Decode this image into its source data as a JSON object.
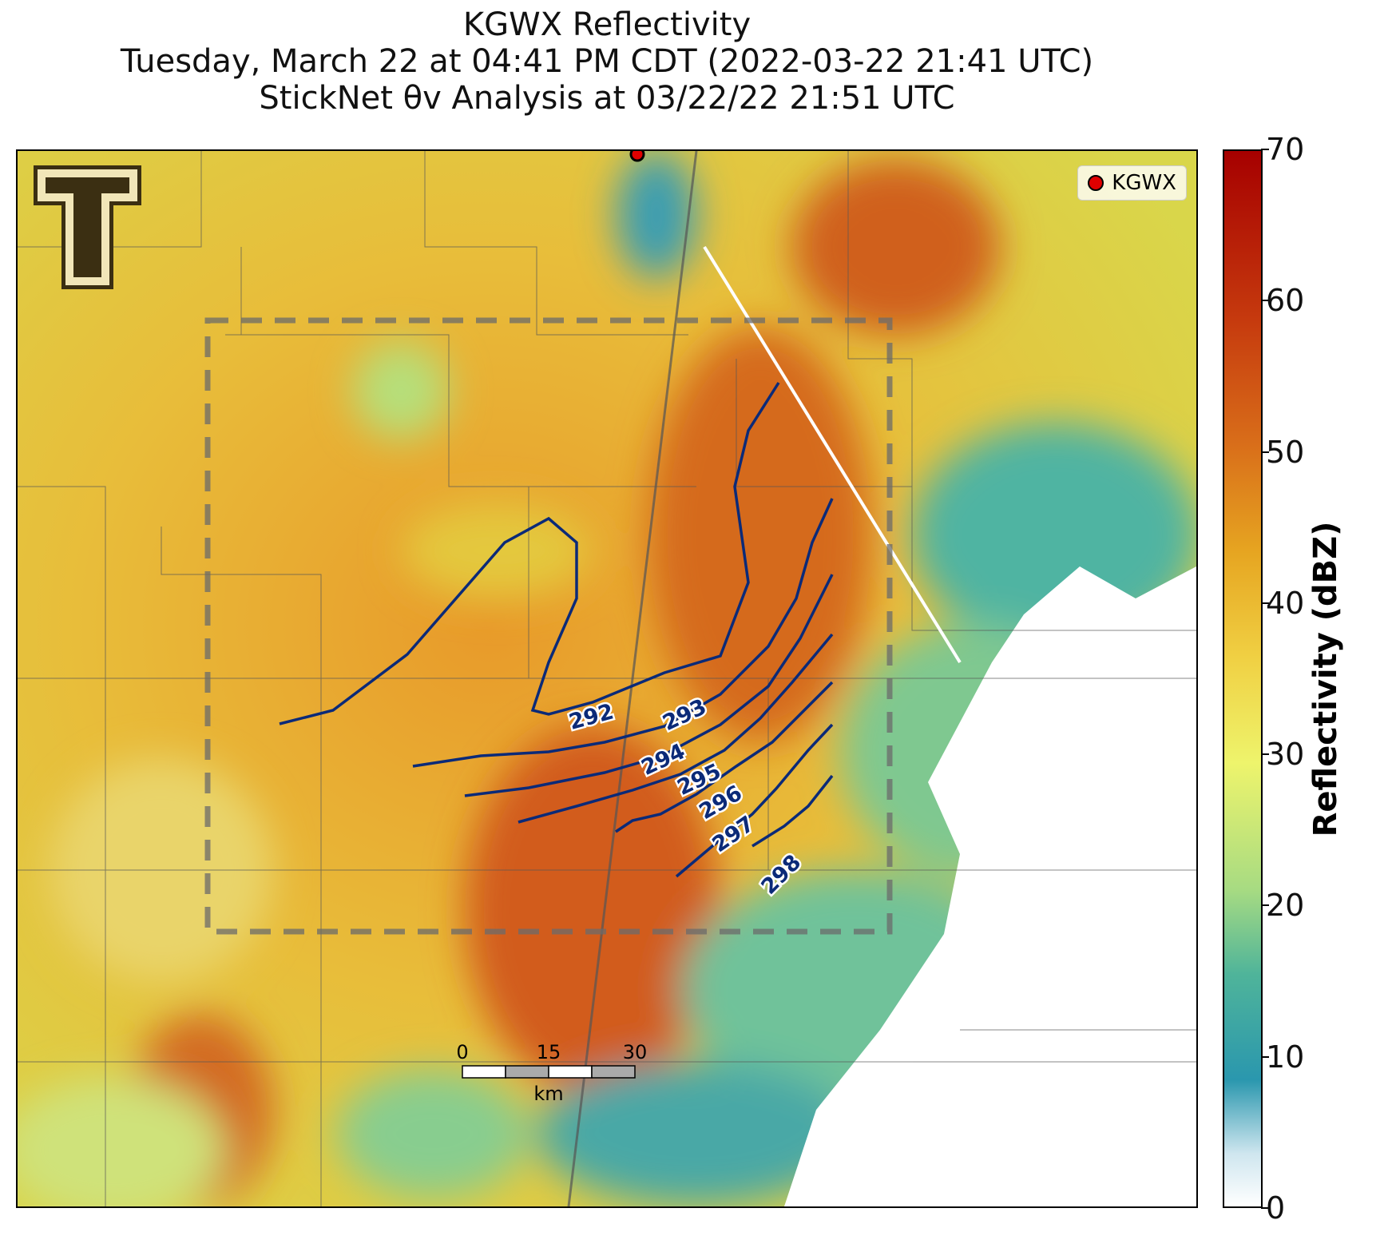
{
  "title": {
    "line1": "KGWX Reflectivity",
    "line2": "Tuesday, March 22 at 04:41 PM CDT (2022-03-22 21:41 UTC)",
    "line3": "StickNet θv Analysis at 03/22/22 21:51 UTC"
  },
  "legend": {
    "label": "KGWX",
    "marker_color": "#e00000"
  },
  "colorbar": {
    "label": "Reflectivity (dBZ)",
    "ticks": [
      "0",
      "10",
      "20",
      "30",
      "40",
      "50",
      "60",
      "70"
    ],
    "range": [
      0,
      70
    ]
  },
  "contours": [
    {
      "value": "292"
    },
    {
      "value": "293"
    },
    {
      "value": "294"
    },
    {
      "value": "295"
    },
    {
      "value": "296"
    },
    {
      "value": "297"
    },
    {
      "value": "298"
    }
  ],
  "scalebar": {
    "ticks": [
      "0",
      "15",
      "30"
    ],
    "unit": "km"
  },
  "colors": {
    "contour": "#0b2a78",
    "analysis_box": "#6b6b6b"
  }
}
